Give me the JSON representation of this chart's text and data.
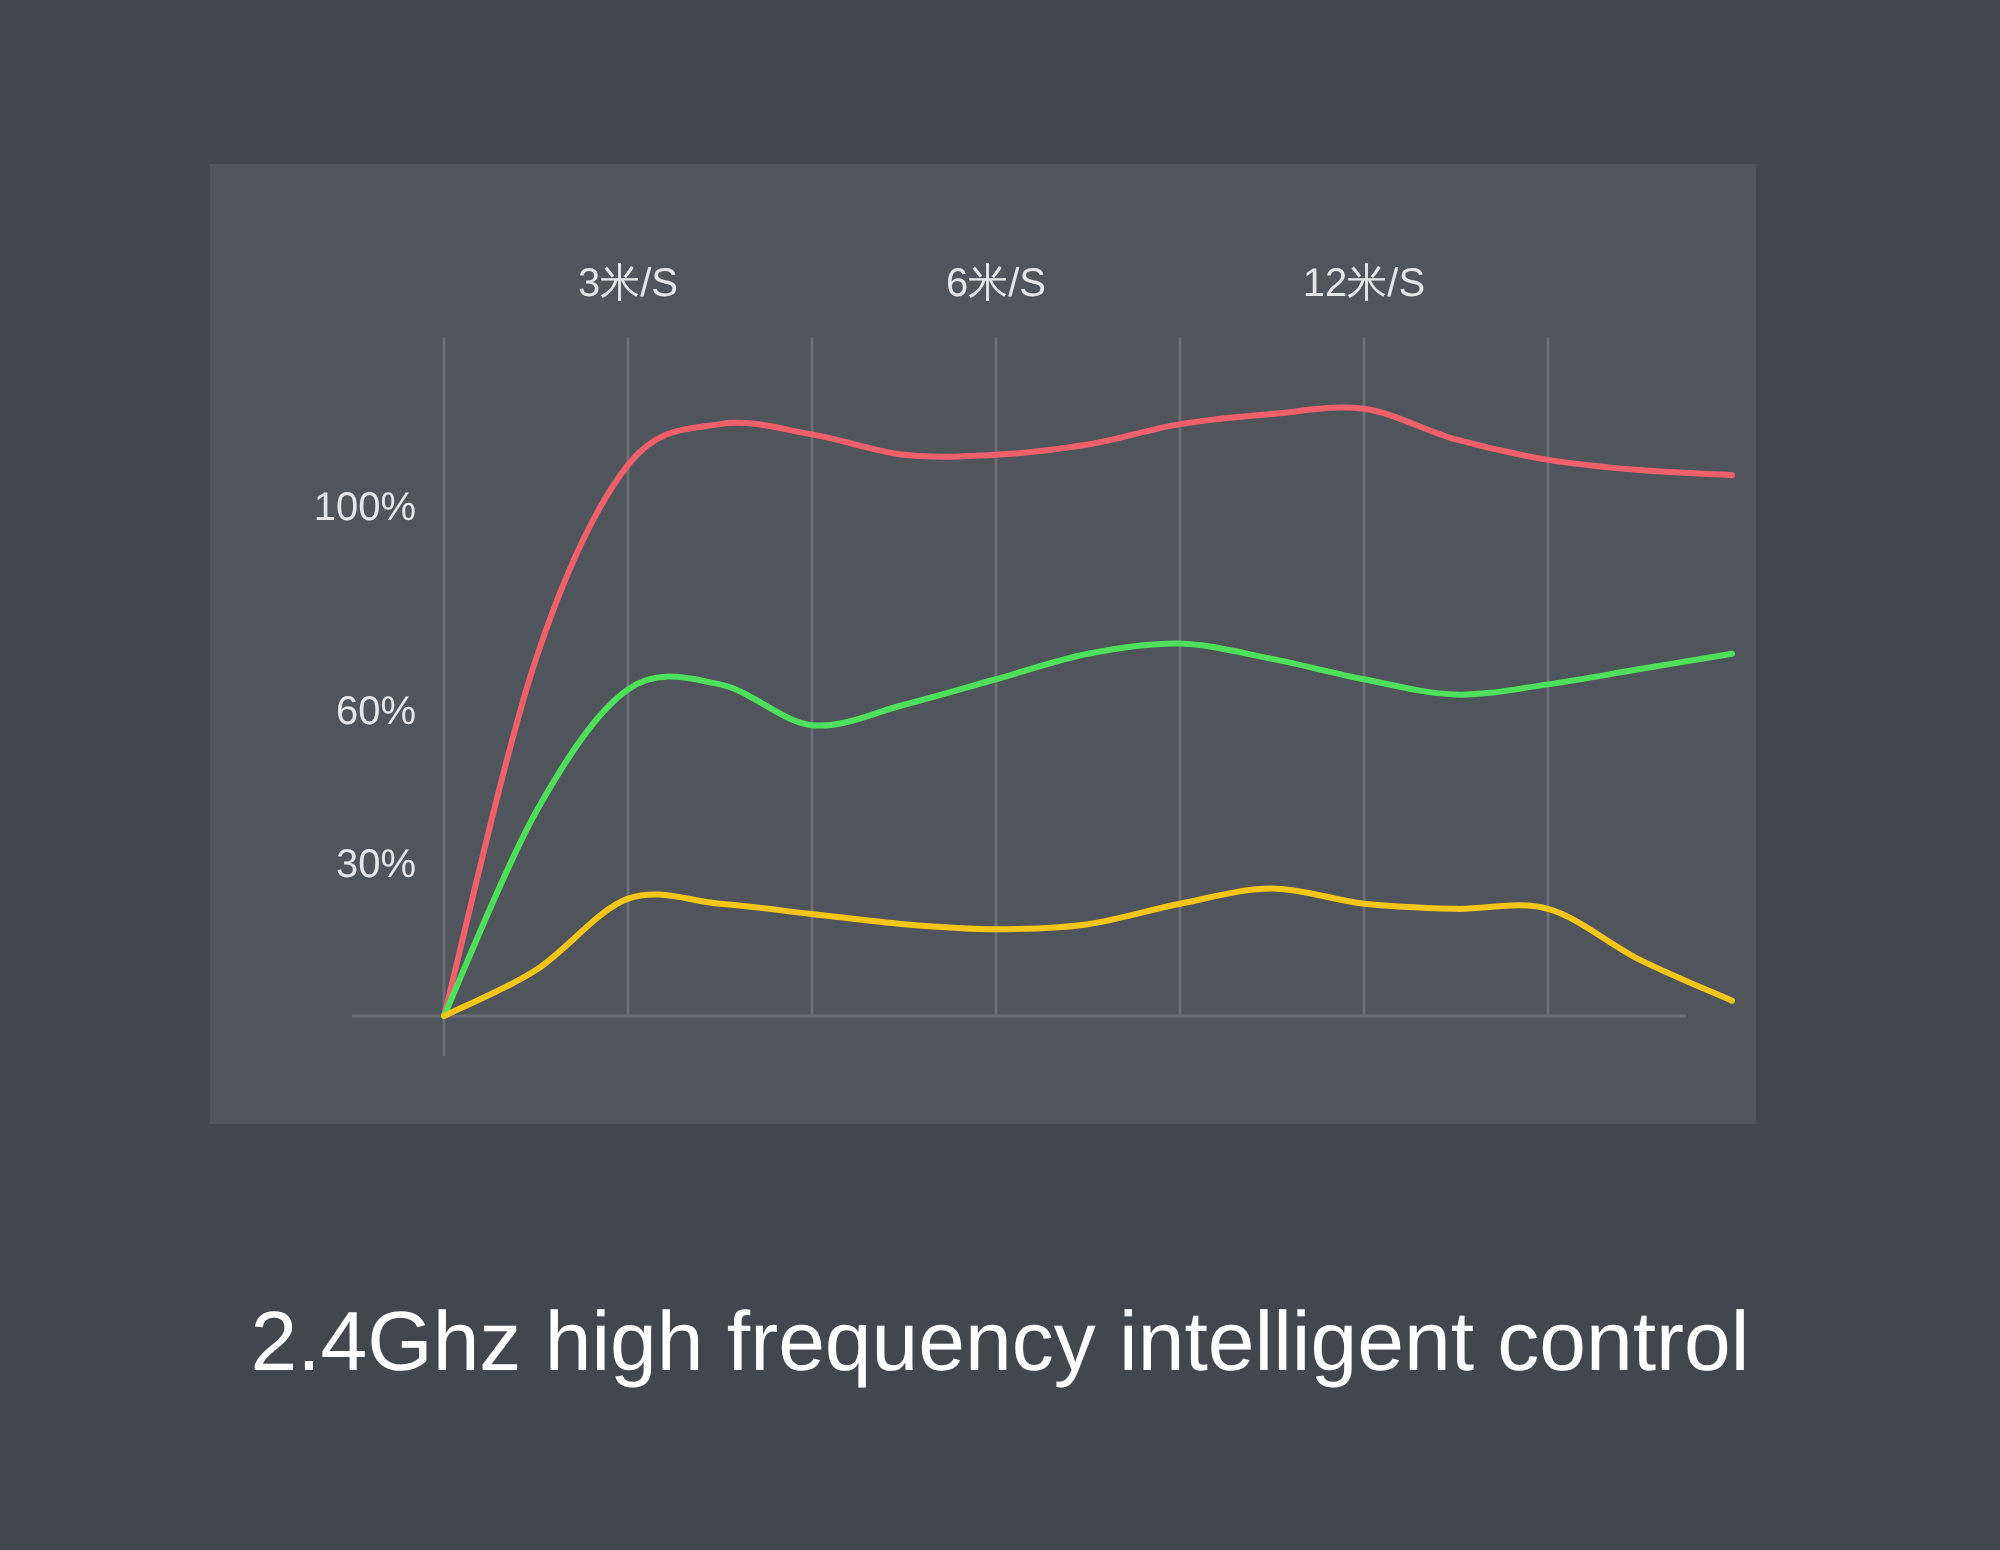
{
  "chart_data": {
    "type": "line",
    "annotations": [
      "2.4Ghz high frequency intelligent control"
    ],
    "categories": [
      null,
      null,
      "3米/S",
      null,
      null,
      null,
      "6米/S",
      null,
      null,
      null,
      "12米/S",
      null,
      null,
      null,
      null
    ],
    "ylim": [
      0,
      133
    ],
    "yticks": [
      {
        "value": 30,
        "label": "30%"
      },
      {
        "value": 60,
        "label": "60%"
      },
      {
        "value": 100,
        "label": "100%"
      }
    ],
    "grid": "x",
    "series": [
      {
        "color": "#f0606a",
        "values": [
          0,
          70,
          108,
          116,
          114,
          110,
          110,
          112,
          116,
          118,
          119,
          113,
          109,
          107,
          106
        ]
      },
      {
        "color": "#4ee05a",
        "values": [
          0,
          40,
          64,
          65,
          57,
          61,
          66,
          71,
          73,
          70,
          66,
          63,
          65,
          68,
          71
        ]
      },
      {
        "color": "#f5c518",
        "values": [
          0,
          9,
          23,
          22,
          20,
          18,
          17,
          18,
          22,
          25,
          22,
          21,
          21,
          11,
          3
        ]
      }
    ]
  }
}
